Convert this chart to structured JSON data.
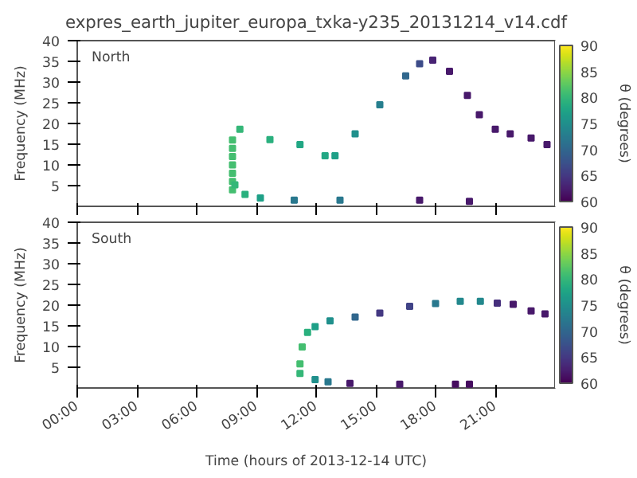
{
  "chart_data": [
    {
      "type": "scatter",
      "title": "expres_earth_jupiter_europa_txka-y235_20131214_v14.cdf",
      "ylabel": "Frequency (MHz)",
      "clabel": "θ (degrees)",
      "annotations": [
        "North"
      ],
      "marker": "square",
      "tick_labels": "y",
      "x": [
        7.8,
        7.8,
        7.8,
        7.8,
        7.8,
        7.8,
        7.8,
        8.17,
        9.68,
        11.19,
        12.45,
        12.95,
        13.96,
        15.2,
        16.5,
        17.2,
        17.86,
        18.7,
        19.6,
        20.2,
        21.0,
        21.75,
        22.8,
        23.6,
        7.92,
        8.43,
        9.2,
        10.9,
        13.2,
        17.2,
        19.7
      ],
      "values": [
        4,
        6,
        8,
        10,
        12,
        14,
        16,
        18.6,
        16.1,
        14.9,
        12.2,
        12.2,
        17.5,
        24.5,
        31.5,
        34.4,
        35.3,
        32.6,
        26.8,
        22.1,
        18.6,
        17.5,
        16.5,
        14.9,
        5.2,
        2.9,
        2.0,
        1.5,
        1.5,
        1.5,
        1.2
      ],
      "cvalues": [
        81,
        81,
        81,
        81,
        81,
        81,
        81,
        80,
        79,
        78,
        78,
        77,
        75,
        73,
        70,
        67,
        63,
        62,
        62,
        62,
        62,
        62,
        62,
        62,
        80,
        79,
        77,
        72,
        72,
        62,
        62
      ],
      "xlim": [
        0,
        24
      ],
      "xticks": [
        0,
        3,
        6,
        9,
        12,
        15,
        18,
        21
      ],
      "ylim": [
        0,
        40
      ],
      "yticks": [
        5,
        10,
        15,
        20,
        25,
        30,
        35,
        40
      ],
      "clim": [
        60,
        90
      ],
      "cticks": [
        60,
        65,
        70,
        75,
        80,
        85,
        90
      ]
    },
    {
      "type": "scatter",
      "xlabel": "Time (hours of 2013-12-14 UTC)",
      "ylabel": "Frequency (MHz)",
      "clabel": "θ (degrees)",
      "annotations": [
        "South"
      ],
      "marker": "square",
      "x": [
        11.19,
        11.3,
        11.57,
        11.95,
        12.7,
        13.96,
        15.2,
        16.7,
        18.0,
        19.24,
        20.25,
        21.1,
        21.9,
        22.8,
        23.5,
        11.19,
        11.95,
        12.6,
        13.7,
        16.2,
        19.0,
        19.7
      ],
      "values": [
        5.8,
        9.9,
        13.4,
        14.8,
        16.2,
        17.1,
        18.1,
        19.7,
        20.4,
        20.9,
        20.9,
        20.5,
        20.2,
        18.6,
        17.9,
        3.5,
        2.0,
        1.5,
        1.1,
        0.9,
        0.9,
        0.9
      ],
      "cvalues": [
        81,
        81,
        79,
        77,
        75,
        70,
        65,
        66,
        72,
        74,
        74,
        64,
        62,
        62,
        62,
        80,
        75,
        72,
        62,
        62,
        61,
        61
      ],
      "xlim": [
        0,
        24
      ],
      "xticks": [
        {
          "value": 0,
          "label": "00:00"
        },
        {
          "value": 3,
          "label": "03:00"
        },
        {
          "value": 6,
          "label": "06:00"
        },
        {
          "value": 9,
          "label": "09:00"
        },
        {
          "value": 12,
          "label": "12:00"
        },
        {
          "value": 15,
          "label": "15:00"
        },
        {
          "value": 18,
          "label": "18:00"
        },
        {
          "value": 21,
          "label": "21:00"
        }
      ],
      "ylim": [
        0,
        40
      ],
      "yticks": [
        5,
        10,
        15,
        20,
        25,
        30,
        35,
        40
      ],
      "clim": [
        60,
        90
      ],
      "cticks": [
        60,
        65,
        70,
        75,
        80,
        85,
        90
      ]
    }
  ]
}
